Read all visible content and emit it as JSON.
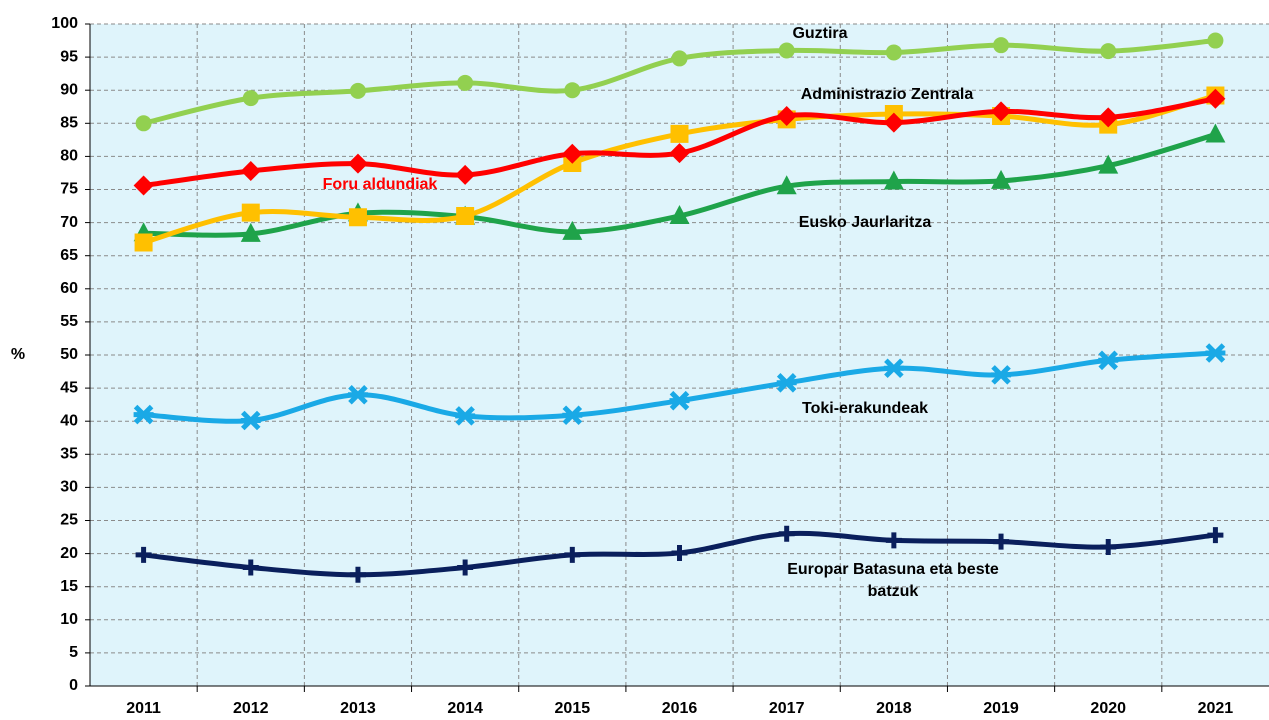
{
  "chart_data": {
    "type": "line",
    "ylabel": "%",
    "categories": [
      "2011",
      "2012",
      "2013",
      "2014",
      "2015",
      "2016",
      "2017",
      "2018",
      "2019",
      "2020",
      "2021"
    ],
    "series": [
      {
        "name": "Guztira",
        "color": "#92d050",
        "values": [
          85,
          88.8,
          89.9,
          91.1,
          90,
          94.8,
          96,
          95.7,
          96.8,
          95.9,
          97.5
        ]
      },
      {
        "name": "Administrazio Zentrala",
        "color": "#ffc000",
        "values": [
          67,
          71.5,
          70.8,
          71,
          79,
          83.4,
          85.6,
          86.4,
          86.1,
          84.8,
          89.2
        ]
      },
      {
        "name": "Foru aldundiak",
        "color": "#ff0000",
        "values": [
          75.6,
          77.8,
          78.9,
          77.2,
          80.4,
          80.5,
          86.1,
          85.1,
          86.8,
          85.9,
          88.7
        ]
      },
      {
        "name": "Eusko Jaurlaritza",
        "color": "#1fa34a",
        "values": [
          68.4,
          68.3,
          71.4,
          70.9,
          68.6,
          71,
          75.5,
          76.2,
          76.3,
          78.6,
          83.3
        ]
      },
      {
        "name": "Toki-erakundeak",
        "color": "#1aa9e6",
        "values": [
          41,
          40.1,
          44,
          40.8,
          40.9,
          43.1,
          45.8,
          48,
          47,
          49.2,
          50.3
        ]
      },
      {
        "name": "Europar Batasuna eta beste batzuk",
        "color": "#0a1f5c",
        "values": [
          19.8,
          17.9,
          16.8,
          17.9,
          19.8,
          20.1,
          23,
          22,
          21.8,
          21,
          22.8
        ]
      }
    ],
    "ylim": [
      0,
      100
    ],
    "yticks": [
      0,
      5,
      10,
      15,
      20,
      25,
      30,
      35,
      40,
      45,
      50,
      55,
      60,
      65,
      70,
      75,
      80,
      85,
      90,
      95,
      100
    ],
    "grid": true
  }
}
